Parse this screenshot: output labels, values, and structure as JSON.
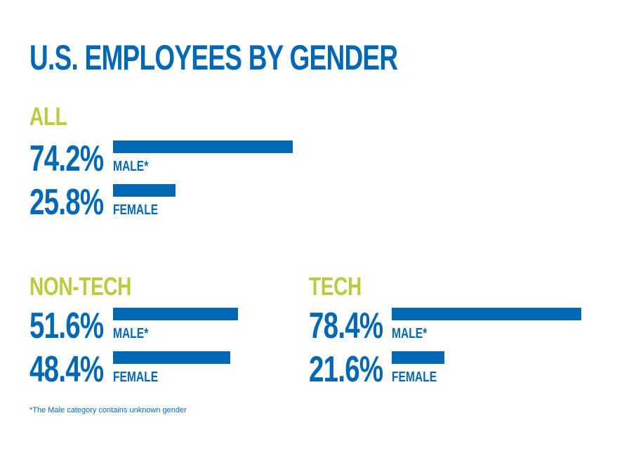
{
  "title": "U.S. EMPLOYEES BY GENDER",
  "footnote": "*The Male category contains unknown gender",
  "colors": {
    "title": "#0068b5",
    "section": "#b8cc3d",
    "bar": "#0068b5"
  },
  "chart_data": [
    {
      "type": "bar",
      "title": "ALL",
      "categories": [
        "MALE*",
        "FEMALE"
      ],
      "values": [
        74.2,
        25.8
      ],
      "value_labels": [
        "74.2%",
        "25.8%"
      ]
    },
    {
      "type": "bar",
      "title": "NON-TECH",
      "categories": [
        "MALE*",
        "FEMALE"
      ],
      "values": [
        51.6,
        48.4
      ],
      "value_labels": [
        "51.6%",
        "48.4%"
      ]
    },
    {
      "type": "bar",
      "title": "TECH",
      "categories": [
        "MALE*",
        "FEMALE"
      ],
      "values": [
        78.4,
        21.6
      ],
      "value_labels": [
        "78.4%",
        "21.6%"
      ]
    }
  ]
}
